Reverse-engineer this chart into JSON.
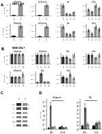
{
  "bg_color": "#ffffff",
  "panel_A_title": "HEK-1 LPS",
  "panel_B_title": "RAW 264.7",
  "section_A": {
    "row1": [
      {
        "title": "b-Tubulin",
        "bars": [
          0.06,
          1.0
        ],
        "errors": [
          0.02,
          0.12
        ],
        "bar_colors": [
          "#333333",
          "#999999"
        ]
      },
      {
        "title": "b-Catenin",
        "bars": [
          0.06,
          1.1
        ],
        "errors": [
          0.02,
          0.18
        ],
        "bar_colors": [
          "#333333",
          "#999999"
        ]
      },
      {
        "title": "akt",
        "bars": [
          0.55,
          0.12,
          0.08,
          0.18
        ],
        "errors": [
          0.1,
          0.03,
          0.02,
          0.04
        ],
        "bar_colors": [
          "#999999",
          "#999999",
          "#999999",
          "#999999"
        ]
      },
      {
        "title": "mTor",
        "bars": [
          0.12,
          0.08,
          0.2,
          0.15
        ],
        "errors": [
          0.03,
          0.02,
          0.04,
          0.03
        ],
        "bar_colors": [
          "#999999",
          "#999999",
          "#999999",
          "#999999"
        ]
      }
    ],
    "row2": [
      {
        "title": "b-Tubulin",
        "bars": [
          0.06,
          0.75
        ],
        "errors": [
          0.02,
          0.12
        ],
        "bar_colors": [
          "#333333",
          "#999999"
        ]
      },
      {
        "title": "b-Catenin",
        "bars": [
          0.06,
          0.9
        ],
        "errors": [
          0.02,
          0.15
        ],
        "bar_colors": [
          "#333333",
          "#999999"
        ]
      },
      {
        "title": "akt",
        "bars": [
          0.4,
          0.12,
          0.1,
          0.2
        ],
        "errors": [
          0.07,
          0.03,
          0.02,
          0.04
        ],
        "bar_colors": [
          "#999999",
          "#999999",
          "#999999",
          "#999999"
        ]
      },
      {
        "title": "mTor",
        "bars": [
          0.12,
          0.06,
          0.18,
          0.14
        ],
        "errors": [
          0.03,
          0.02,
          0.04,
          0.03
        ],
        "bar_colors": [
          "#999999",
          "#999999",
          "#999999",
          "#999999"
        ]
      }
    ]
  },
  "section_B": {
    "row1": [
      {
        "title": "b-Tubulin",
        "bars": [
          0.22,
          0.22,
          0.22,
          0.22
        ],
        "errors": [
          0.03,
          0.03,
          0.03,
          0.03
        ],
        "bar_colors": [
          "#333333",
          "#666666",
          "#999999",
          "#999999"
        ]
      },
      {
        "title": "b-Tubulin",
        "bars": [
          0.22,
          0.22,
          0.22,
          0.22
        ],
        "errors": [
          0.04,
          0.03,
          0.03,
          0.04
        ],
        "bar_colors": [
          "#333333",
          "#666666",
          "#999999",
          "#cccccc"
        ]
      },
      {
        "title": "kDa",
        "bars": [
          0.22,
          0.22,
          0.15,
          0.28
        ],
        "errors": [
          0.04,
          0.04,
          0.03,
          0.06
        ],
        "bar_colors": [
          "#333333",
          "#666666",
          "#999999",
          "#cccccc"
        ]
      },
      {
        "title": "mTor",
        "bars": [
          0.22,
          0.22,
          0.15,
          0.22
        ],
        "errors": [
          0.04,
          0.04,
          0.03,
          0.05
        ],
        "bar_colors": [
          "#333333",
          "#666666",
          "#999999",
          "#cccccc"
        ]
      }
    ],
    "row2": [
      {
        "title": "b-Tubulin",
        "bars": [
          0.1,
          0.1,
          0.1,
          0.15
        ],
        "errors": [
          0.02,
          0.02,
          0.02,
          0.04
        ],
        "bar_colors": [
          "#333333",
          "#666666",
          "#999999",
          "#cccccc"
        ]
      },
      {
        "title": "kDa",
        "bars": [
          0.05,
          0.6,
          0.08,
          0.07
        ],
        "errors": [
          0.01,
          0.1,
          0.02,
          0.02
        ],
        "bar_colors": [
          "#333333",
          "#666666",
          "#999999",
          "#cccccc"
        ]
      },
      {
        "title": "mTor",
        "bars": [
          0.15,
          0.12,
          0.22,
          0.12
        ],
        "errors": [
          0.04,
          0.03,
          0.05,
          0.03
        ],
        "bar_colors": [
          "#333333",
          "#666666",
          "#999999",
          "#cccccc"
        ]
      },
      {
        "title": "",
        "bars": [],
        "errors": [],
        "bar_colors": []
      }
    ]
  },
  "panel_C": {
    "lane_labels": [
      "2",
      "3"
    ],
    "bands": [
      {
        "label": "pAkt",
        "kda": "60",
        "intensities": [
          0.85,
          0.45
        ]
      },
      {
        "label": "Akt",
        "kda": "60",
        "intensities": [
          0.7,
          0.6
        ]
      },
      {
        "label": "pPfu",
        "kda": "",
        "intensities": [
          0.6,
          0.35
        ]
      },
      {
        "label": "cFos",
        "kda": "",
        "intensities": [
          0.5,
          0.5
        ]
      },
      {
        "label": "CP68",
        "kda": "",
        "intensities": [
          0.55,
          0.45
        ]
      },
      {
        "label": "tAc",
        "kda": "42",
        "intensities": [
          0.65,
          0.6
        ]
      }
    ]
  },
  "panel_D_left": {
    "title": "b-Catenin",
    "x_labels": [
      "pPfk",
      "b-Hmk"
    ],
    "series": [
      {
        "bars": [
          0.06,
          0.08
        ],
        "errors": [
          0.01,
          0.02
        ],
        "color": "#111111"
      },
      {
        "bars": [
          1.0,
          0.12
        ],
        "errors": [
          0.15,
          0.03
        ],
        "color": "#666666"
      },
      {
        "bars": [
          0.08,
          0.06
        ],
        "errors": [
          0.02,
          0.01
        ],
        "color": "#aaaaaa"
      },
      {
        "bars": [
          0.1,
          0.08
        ],
        "errors": [
          0.02,
          0.02
        ],
        "color": "#cccccc"
      }
    ],
    "sig_line": [
      0,
      1,
      1.25
    ],
    "sig_text": "***"
  },
  "panel_D_right": {
    "title": "kDc",
    "x_labels": [
      "b-Pfu",
      "b-Dfu"
    ],
    "series": [
      {
        "bars": [
          0.08,
          0.08
        ],
        "errors": [
          0.02,
          0.02
        ],
        "color": "#111111"
      },
      {
        "bars": [
          0.55,
          0.15
        ],
        "errors": [
          0.1,
          0.04
        ],
        "color": "#666666"
      },
      {
        "bars": [
          0.12,
          0.18
        ],
        "errors": [
          0.03,
          0.04
        ],
        "color": "#aaaaaa"
      }
    ],
    "sig_line": [
      0,
      1,
      0.75
    ],
    "sig_text": "*"
  }
}
